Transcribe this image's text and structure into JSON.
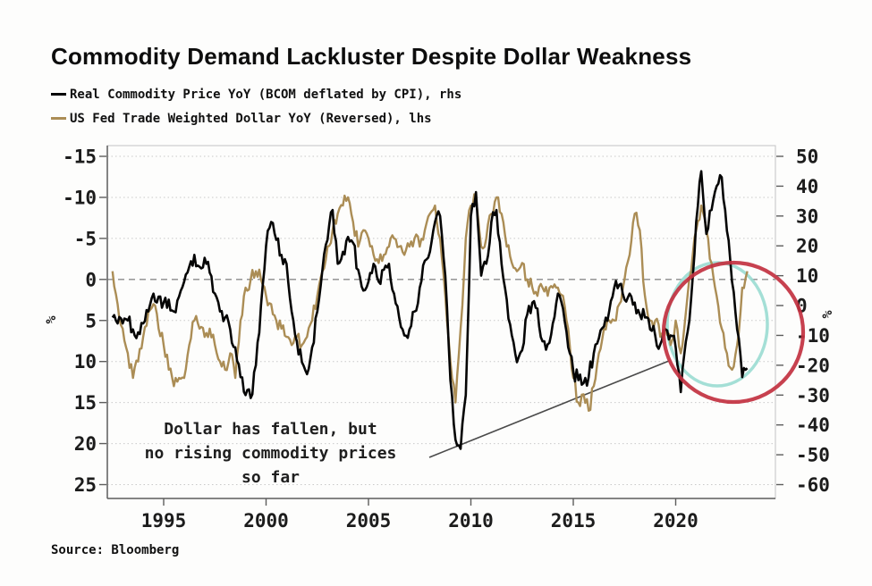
{
  "title": "Commodity Demand Lackluster Despite Dollar Weakness",
  "legend": [
    {
      "label": "Real Commodity Price YoY (BCOM deflated by CPI), rhs",
      "color": "#050505"
    },
    {
      "label": "US Fed Trade Weighted Dollar YoY (Reversed), lhs",
      "color": "#ab8d55"
    }
  ],
  "annotation": {
    "line1": "Dollar has fallen, but",
    "line2": "no rising commodity prices",
    "line3": "so far"
  },
  "source": "Source: Bloomberg",
  "colors": {
    "commodity_line": "#050505",
    "dollar_line": "#ab8d55",
    "red_circle": "#c23140",
    "cyan_circle": "#9adbd2",
    "grid": "#c9c9c9",
    "zero_line": "#8a8a8a",
    "pointer": "#4a4a4a",
    "axis_text": "#1c1c1c",
    "border": "#c4c4c4",
    "axis_dark": "#5d5d5d"
  },
  "chart_data": {
    "type": "line",
    "title": "Commodity Demand Lackluster Despite Dollar Weakness",
    "x_unit": "year",
    "x_start": 1992.5,
    "x_step": 0.25,
    "x_axis": {
      "ticks": [
        "1995",
        "2000",
        "2005",
        "2010",
        "2015",
        "2020"
      ],
      "range": [
        1992.25,
        2024.8
      ]
    },
    "left_axis": {
      "label": "%",
      "ticks": [
        "-15",
        "-10",
        "-5",
        "0",
        "5",
        "10",
        "15",
        "20",
        "25"
      ],
      "range": [
        -15,
        25
      ],
      "note": "dollar YoY, reversed (negative at top)"
    },
    "right_axis": {
      "label": "%",
      "ticks": [
        "50",
        "40",
        "30",
        "20",
        "10",
        "0",
        "-10",
        "-20",
        "-30",
        "-40",
        "-50",
        "-60"
      ],
      "range": [
        -60,
        50
      ]
    },
    "grid": true,
    "zero_dashed_line_left_axis": 0,
    "series": [
      {
        "name": "Real Commodity Price YoY (BCOM deflated by CPI), rhs",
        "axis": "right",
        "color": "#050505",
        "values": [
          -4,
          -6,
          -6,
          -5,
          -8,
          -9,
          -6,
          -2,
          4,
          3,
          1,
          2,
          -2,
          3,
          8,
          13,
          17,
          13,
          16,
          11,
          4,
          -2,
          -4,
          -8,
          -14,
          -24,
          -30,
          -31,
          -20,
          0,
          20,
          28,
          22,
          17,
          14,
          -2,
          -12,
          -19,
          -23,
          -14,
          -2,
          12,
          22,
          32,
          14,
          18,
          23,
          21,
          12,
          5,
          8,
          14,
          8,
          12,
          14,
          4,
          -4,
          -10,
          -8,
          -2,
          6,
          15,
          18,
          28,
          30,
          10,
          -25,
          -45,
          -48,
          -30,
          30,
          38,
          10,
          14,
          28,
          32,
          14,
          2,
          -10,
          -19,
          -15,
          -3,
          1,
          -1,
          -12,
          -13,
          -6,
          4,
          -1,
          -14,
          -22,
          -25,
          -26,
          -24,
          -16,
          -11,
          -7,
          -2,
          6,
          7,
          2,
          4,
          1,
          -3,
          -4,
          -8,
          -10,
          -13,
          -8,
          -10,
          -14,
          -29,
          -12,
          2,
          28,
          45,
          24,
          32,
          40,
          43,
          25,
          8,
          -8,
          -24,
          -21
        ]
      },
      {
        "name": "US Fed Trade Weighted Dollar YoY (Reversed), lhs",
        "axis": "left",
        "color": "#ab8d55",
        "values": [
          -1,
          3,
          6,
          9,
          12,
          10,
          7,
          4,
          3,
          6,
          8,
          11,
          13,
          12,
          12,
          8,
          5,
          6,
          7,
          6,
          8,
          10,
          11,
          9,
          12,
          5,
          1,
          0,
          -1,
          0,
          2,
          3,
          5,
          6,
          7,
          8,
          7,
          8,
          7,
          5,
          2,
          -1,
          -4,
          -6,
          -8,
          -9,
          -10,
          -7,
          -4,
          -6,
          -5,
          -3,
          -2,
          -3,
          -4,
          -5,
          -4,
          -3,
          -4,
          -5,
          -4,
          -6,
          -8,
          -9,
          -5,
          2,
          10,
          15,
          6,
          -5,
          -9,
          -10,
          -4,
          -5,
          -8,
          -10,
          -8,
          -4,
          -2,
          -1,
          -2,
          0,
          1,
          2,
          1,
          2,
          1,
          1,
          2,
          6,
          12,
          15,
          14,
          16,
          13,
          9,
          6,
          5,
          5,
          3,
          0,
          -3,
          -8,
          -6,
          2,
          5,
          5,
          7,
          6,
          8,
          5,
          9,
          4,
          -1,
          -6,
          -9,
          -6,
          -2,
          2,
          6,
          9,
          11,
          8,
          1,
          -1
        ]
      }
    ],
    "annotations": {
      "text": "Dollar has fallen, but no rising commodity prices so far",
      "red_ellipse_region": "circa 2020-2024, both series",
      "cyan_ellipse_region": "circa 2020-2023, both series"
    }
  }
}
